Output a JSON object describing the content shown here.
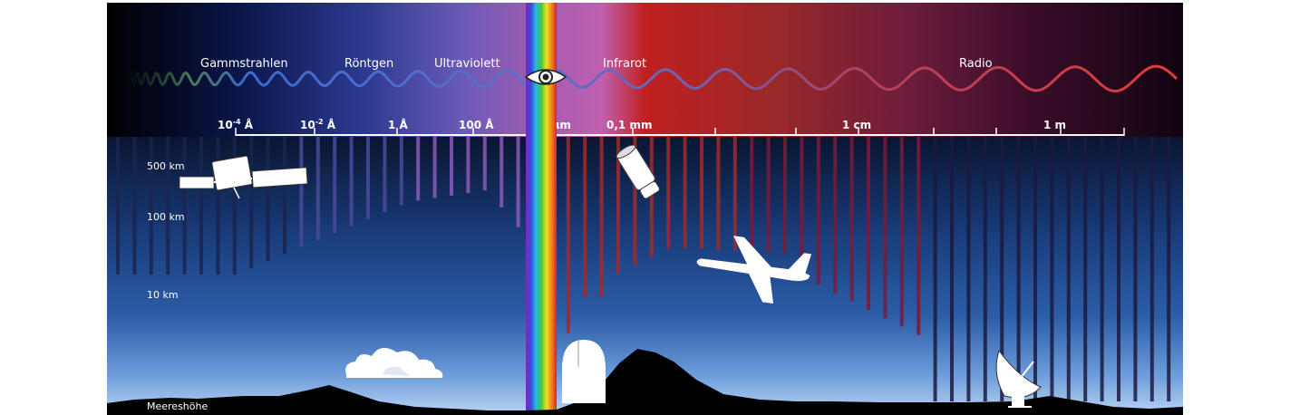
{
  "bands": [
    {
      "key": "gamma",
      "label": "Gammstrahlen"
    },
    {
      "key": "xray",
      "label": "Röntgen"
    },
    {
      "key": "uv",
      "label": "Ultraviolett"
    },
    {
      "key": "ir",
      "label": "Infrarot"
    },
    {
      "key": "radio",
      "label": "Radio"
    }
  ],
  "scale": [
    {
      "base": "10",
      "exp": "-4",
      "unit": " Å"
    },
    {
      "base": "10",
      "exp": "-2",
      "unit": " Å"
    },
    {
      "base": "1 Å",
      "exp": "",
      "unit": ""
    },
    {
      "base": "100 Å",
      "exp": "",
      "unit": ""
    },
    {
      "base": "1 μm",
      "exp": "",
      "unit": ""
    },
    {
      "base": "0,1 mm",
      "exp": "",
      "unit": ""
    },
    {
      "base": "1 cm",
      "exp": "",
      "unit": ""
    },
    {
      "base": "1 m",
      "exp": "",
      "unit": ""
    }
  ],
  "altitudes": [
    {
      "key": "500",
      "label": "500 km"
    },
    {
      "key": "100",
      "label": "100 km"
    },
    {
      "key": "10",
      "label": "10 km"
    },
    {
      "key": "sea",
      "label": "Meereshöhe"
    }
  ],
  "icons": {
    "satellite": "satellite-icon",
    "space_telescope": "space-telescope-icon",
    "airplane": "airplane-icon",
    "cloud": "cloud-icon",
    "observatory": "observatory-dome-icon",
    "radio_dish": "radio-telescope-icon",
    "eye": "eye-icon"
  },
  "colors": {
    "gamma": "#4a7a55",
    "xray": "#3d6ad0",
    "uv": "#9a5cc0",
    "visible": "#ffffff",
    "infrared": "#c53030",
    "radio": "#e23a3a",
    "sky_top": "#0a1530",
    "sky_bottom": "#a8c8f0"
  }
}
